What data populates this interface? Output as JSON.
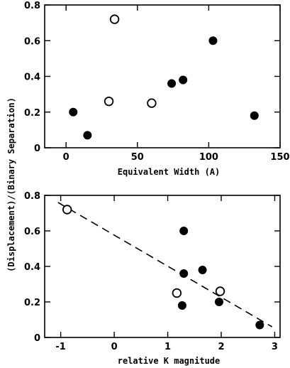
{
  "figure": {
    "shared_ylabel": "(Displacement)/(Binary Separation)"
  },
  "chart_data": [
    {
      "type": "scatter",
      "title": "",
      "xlabel": "Equivalent Width (A)",
      "ylabel": "(Displacement)/(Binary Separation)",
      "xlim": [
        -15,
        150
      ],
      "ylim": [
        0,
        0.8
      ],
      "xticks": [
        0,
        50,
        100,
        150
      ],
      "yticks": [
        0,
        0.2,
        0.4,
        0.6,
        0.8
      ],
      "xtick_labels": [
        "0",
        "50",
        "100",
        "150"
      ],
      "ytick_labels": [
        "0",
        "0.2",
        "0.4",
        "0.6",
        "0.8"
      ],
      "grid": false,
      "series": [
        {
          "marker": "filled-circle",
          "color": "#000000",
          "points": [
            {
              "x": 5,
              "y": 0.2
            },
            {
              "x": 15,
              "y": 0.07
            },
            {
              "x": 74,
              "y": 0.36
            },
            {
              "x": 82,
              "y": 0.38
            },
            {
              "x": 103,
              "y": 0.6
            },
            {
              "x": 132,
              "y": 0.18
            }
          ]
        },
        {
          "marker": "open-circle",
          "color": "#000000",
          "points": [
            {
              "x": 30,
              "y": 0.26
            },
            {
              "x": 34,
              "y": 0.72
            },
            {
              "x": 60,
              "y": 0.25
            }
          ]
        }
      ]
    },
    {
      "type": "scatter",
      "title": "",
      "xlabel": "relative K magnitude",
      "ylabel": "(Displacement)/(Binary Separation)",
      "xlim": [
        -1.3,
        3.1
      ],
      "ylim": [
        0,
        0.8
      ],
      "xticks": [
        -1,
        0,
        1,
        2,
        3
      ],
      "yticks": [
        0,
        0.2,
        0.4,
        0.6,
        0.8
      ],
      "xtick_labels": [
        "-1",
        "0",
        "1",
        "2",
        "3"
      ],
      "ytick_labels": [
        "0",
        "0.2",
        "0.4",
        "0.6",
        "0.8"
      ],
      "grid": false,
      "series": [
        {
          "marker": "filled-circle",
          "color": "#000000",
          "points": [
            {
              "x": 1.27,
              "y": 0.18
            },
            {
              "x": 1.3,
              "y": 0.6
            },
            {
              "x": 1.3,
              "y": 0.36
            },
            {
              "x": 1.65,
              "y": 0.38
            },
            {
              "x": 1.96,
              "y": 0.2
            },
            {
              "x": 2.72,
              "y": 0.07
            }
          ]
        },
        {
          "marker": "open-circle",
          "color": "#000000",
          "points": [
            {
              "x": -0.88,
              "y": 0.72
            },
            {
              "x": 1.17,
              "y": 0.25
            },
            {
              "x": 1.98,
              "y": 0.26
            }
          ]
        }
      ],
      "fit_line": {
        "style": "dashed",
        "from": {
          "x": -1.05,
          "y": 0.76
        },
        "to": {
          "x": 2.95,
          "y": 0.06
        }
      }
    }
  ]
}
